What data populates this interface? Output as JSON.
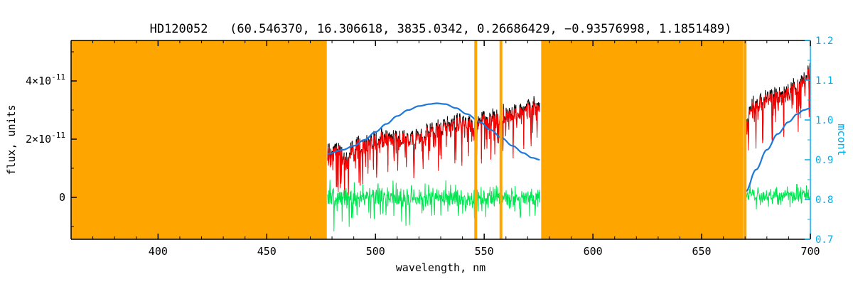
{
  "chart_data": {
    "type": "line",
    "title": "HD120052   (60.546370, 16.306618, 3835.0342, 0.26686429, −0.93576998, 1.1851489)",
    "xlabel": "wavelength, nm",
    "ylabel_left": "flux, units",
    "ylabel_right": "mcont",
    "x_axis": {
      "range": [
        360,
        700
      ],
      "major_ticks": [
        400,
        450,
        500,
        550,
        600,
        650,
        700
      ],
      "minor_ticks": [
        370,
        380,
        390,
        410,
        420,
        430,
        440,
        460,
        470,
        480,
        490,
        510,
        520,
        530,
        540,
        560,
        570,
        580,
        590,
        610,
        620,
        630,
        640,
        660,
        670,
        680,
        690
      ]
    },
    "flux_axis": {
      "unit": "1e-11",
      "range": [
        -1.44,
        5.39
      ],
      "major_ticks": [
        {
          "v": 0,
          "mantissa": "0",
          "exp": ""
        },
        {
          "v": 2,
          "mantissa": "2×10",
          "exp": "-11"
        },
        {
          "v": 4,
          "mantissa": "4×10",
          "exp": "-11"
        }
      ],
      "minor_ticks": [
        -1,
        1,
        3,
        5
      ]
    },
    "mcont_axis": {
      "range": [
        0.7,
        1.2
      ],
      "major_ticks": [
        {
          "v": 0.7,
          "label": "0.7"
        },
        {
          "v": 0.8,
          "label": "0.8"
        },
        {
          "v": 0.9,
          "label": "0.9"
        },
        {
          "v": 1.0,
          "label": "1.0"
        },
        {
          "v": 1.1,
          "label": "1.1"
        },
        {
          "v": 1.2,
          "label": "1.2"
        }
      ],
      "minor_ticks": [
        0.75,
        0.85,
        0.95,
        1.05,
        1.15
      ]
    },
    "mask_regions_nm": [
      [
        360,
        477.6
      ],
      [
        576.2,
        669.2
      ]
    ],
    "mask_lines_nm": [
      546.1,
      557.7,
      670.0
    ],
    "colors": {
      "background": "#FFFFFF",
      "frame": "#000000",
      "mask": "#FFA500",
      "spectrum_black": "#000000",
      "spectrum_red": "#FF0000",
      "residual_green": "#00E650",
      "continuum_blue": "#1E78D7",
      "mcont_axis": "#00AEEF"
    },
    "series": [
      {
        "name": "spectrum-observed-black",
        "axis": "flux",
        "style": "noisy",
        "color_key": "spectrum_black",
        "width": 1,
        "offset": 0,
        "noise": {
          "seed": 1234,
          "step": 0.18,
          "sym": 0.3,
          "spike_down": 1.35,
          "spike_up": 0.18,
          "spike_pow": 8,
          "up_pow": 6
        },
        "segments": [
          {
            "points": [
              [
                478,
                1.55
              ],
              [
                482,
                1.65
              ],
              [
                485,
                1.45
              ],
              [
                486.2,
                1.15
              ],
              [
                487.5,
                1.5
              ],
              [
                490,
                1.75
              ],
              [
                493,
                1.8
              ],
              [
                496,
                1.85
              ],
              [
                500,
                1.95
              ],
              [
                504,
                2.0
              ],
              [
                508,
                2.05
              ],
              [
                512,
                2.1
              ],
              [
                516,
                2.1
              ],
              [
                518,
                2.05
              ],
              [
                522,
                2.2
              ],
              [
                526,
                2.35
              ],
              [
                530,
                2.4
              ],
              [
                534,
                2.45
              ],
              [
                538,
                2.55
              ],
              [
                542,
                2.6
              ],
              [
                546,
                2.55
              ],
              [
                550,
                2.7
              ],
              [
                554,
                2.65
              ],
              [
                558,
                2.75
              ],
              [
                562,
                2.85
              ],
              [
                566,
                2.95
              ],
              [
                570,
                3.05
              ],
              [
                575.7,
                3.15
              ]
            ]
          },
          {
            "points": [
              [
                670.3,
                2.9
              ],
              [
                670.9,
                2.35
              ],
              [
                671.8,
                2.9
              ],
              [
                673,
                3.15
              ],
              [
                676,
                3.25
              ],
              [
                679,
                3.3
              ],
              [
                682,
                3.4
              ],
              [
                685,
                3.5
              ],
              [
                687,
                3.45
              ],
              [
                690,
                3.6
              ],
              [
                693,
                3.75
              ],
              [
                696,
                3.9
              ],
              [
                698,
                4.1
              ],
              [
                700,
                4.35
              ]
            ]
          }
        ]
      },
      {
        "name": "spectrum-fit-red",
        "axis": "flux",
        "style": "noisy",
        "color_key": "spectrum_red",
        "width": 1,
        "offset": -0.05,
        "noise": {
          "seed": 1234,
          "step": 0.18,
          "sym": 0.24,
          "spike_down": 1.5,
          "spike_up": 0.1,
          "spike_pow": 8,
          "up_pow": 6
        },
        "segments": [
          {
            "points": [
              [
                478,
                1.55
              ],
              [
                482,
                1.65
              ],
              [
                485,
                1.45
              ],
              [
                486.2,
                1.15
              ],
              [
                487.5,
                1.5
              ],
              [
                490,
                1.75
              ],
              [
                493,
                1.8
              ],
              [
                496,
                1.85
              ],
              [
                500,
                1.95
              ],
              [
                504,
                2.0
              ],
              [
                508,
                2.05
              ],
              [
                512,
                2.1
              ],
              [
                516,
                2.1
              ],
              [
                518,
                2.05
              ],
              [
                522,
                2.2
              ],
              [
                526,
                2.35
              ],
              [
                530,
                2.4
              ],
              [
                534,
                2.45
              ],
              [
                538,
                2.55
              ],
              [
                542,
                2.6
              ],
              [
                546,
                2.55
              ],
              [
                550,
                2.7
              ],
              [
                554,
                2.65
              ],
              [
                558,
                2.75
              ],
              [
                562,
                2.85
              ],
              [
                566,
                2.95
              ],
              [
                570,
                3.05
              ],
              [
                575.7,
                3.15
              ]
            ]
          },
          {
            "points": [
              [
                670.3,
                2.9
              ],
              [
                670.9,
                2.35
              ],
              [
                671.8,
                2.9
              ],
              [
                673,
                3.15
              ],
              [
                676,
                3.25
              ],
              [
                679,
                3.3
              ],
              [
                682,
                3.4
              ],
              [
                685,
                3.5
              ],
              [
                687,
                3.45
              ],
              [
                690,
                3.6
              ],
              [
                693,
                3.75
              ],
              [
                696,
                3.9
              ],
              [
                698,
                4.1
              ],
              [
                700,
                4.35
              ]
            ]
          }
        ]
      },
      {
        "name": "residual-green-window1",
        "axis": "flux",
        "style": "noisy",
        "color_key": "residual_green",
        "width": 1,
        "offset": 0,
        "noise": {
          "seed": 777,
          "step": 0.18,
          "sym": 0.27,
          "spike_down": 1.0,
          "spike_up": 0.5,
          "spike_pow": 9,
          "up_pow": 8
        },
        "segments": [
          {
            "points": [
              [
                478,
                0.0
              ],
              [
                575.7,
                0.0
              ]
            ]
          }
        ]
      },
      {
        "name": "residual-green-window2",
        "axis": "flux",
        "style": "noisy",
        "color_key": "residual_green",
        "width": 1,
        "offset": 0.05,
        "noise": {
          "seed": 991,
          "step": 0.18,
          "sym": 0.16,
          "spike_down": 0.55,
          "spike_up": 0.35,
          "spike_pow": 8,
          "up_pow": 8
        },
        "segments": [
          {
            "points": [
              [
                670.3,
                0.0
              ],
              [
                700,
                0.0
              ]
            ]
          }
        ]
      },
      {
        "name": "continuum-mcont-blue",
        "axis": "mcont",
        "style": "smooth",
        "color_key": "continuum_blue",
        "width": 2.2,
        "offset": 0,
        "segments": [
          {
            "points": [
              [
                478,
                0.915
              ],
              [
                485,
                0.925
              ],
              [
                490,
                0.935
              ],
              [
                495,
                0.95
              ],
              [
                500,
                0.97
              ],
              [
                505,
                0.99
              ],
              [
                510,
                1.01
              ],
              [
                515,
                1.025
              ],
              [
                520,
                1.035
              ],
              [
                525,
                1.04
              ],
              [
                528,
                1.042
              ],
              [
                532,
                1.04
              ],
              [
                537,
                1.03
              ],
              [
                542,
                1.015
              ],
              [
                548,
                0.995
              ],
              [
                553,
                0.975
              ],
              [
                558,
                0.955
              ],
              [
                563,
                0.935
              ],
              [
                568,
                0.917
              ],
              [
                572,
                0.905
              ],
              [
                575.7,
                0.9
              ]
            ]
          },
          {
            "points": [
              [
                670.3,
                0.82
              ],
              [
                675,
                0.875
              ],
              [
                680,
                0.925
              ],
              [
                685,
                0.965
              ],
              [
                690,
                0.995
              ],
              [
                694,
                1.015
              ],
              [
                697,
                1.025
              ],
              [
                700,
                1.03
              ]
            ]
          }
        ]
      }
    ]
  }
}
